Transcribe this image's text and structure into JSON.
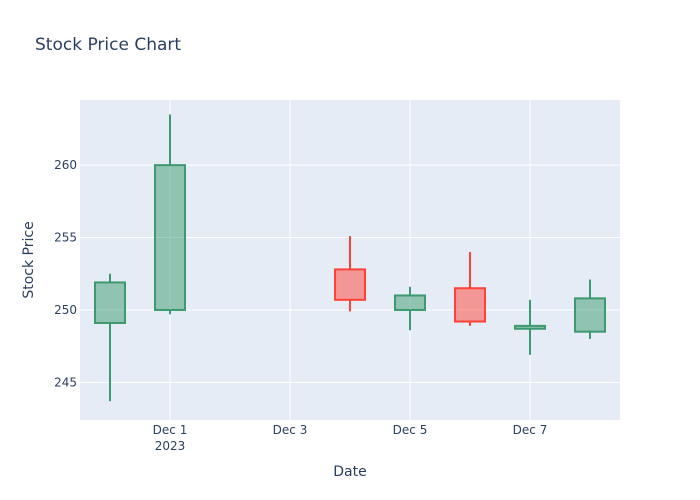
{
  "chart_data": {
    "type": "candlestick",
    "title": "Stock Price Chart",
    "xlabel": "Date",
    "ylabel": "Stock Price",
    "x_tick_labels": [
      {
        "date": "2023-12-01",
        "label": "Dec 1",
        "sublabel": "2023"
      },
      {
        "date": "2023-12-03",
        "label": "Dec 3",
        "sublabel": ""
      },
      {
        "date": "2023-12-05",
        "label": "Dec 5",
        "sublabel": ""
      },
      {
        "date": "2023-12-07",
        "label": "Dec 7",
        "sublabel": ""
      }
    ],
    "xlim": [
      "2023-11-29T12:00",
      "2023-12-08T12:00"
    ],
    "y_ticks": [
      245,
      250,
      255,
      260
    ],
    "ylim": [
      242.4,
      264.5
    ],
    "grid": true,
    "colors": {
      "increasing_line": "#3d9970",
      "increasing_fill": "rgba(61,153,112,0.5)",
      "decreasing_line": "#ff4136",
      "decreasing_fill": "rgba(255,65,54,0.5)",
      "plot_bg": "#e5ecf6",
      "grid": "#ffffff",
      "text": "#2a3f5f"
    },
    "candles": [
      {
        "date": "2023-11-30",
        "open": 249.1,
        "high": 252.5,
        "low": 243.7,
        "close": 251.9
      },
      {
        "date": "2023-12-01",
        "open": 250.0,
        "high": 263.5,
        "low": 249.7,
        "close": 260.0
      },
      {
        "date": "2023-12-04",
        "open": 252.8,
        "high": 255.1,
        "low": 249.9,
        "close": 250.7
      },
      {
        "date": "2023-12-05",
        "open": 250.0,
        "high": 251.6,
        "low": 248.6,
        "close": 251.0
      },
      {
        "date": "2023-12-06",
        "open": 251.5,
        "high": 254.0,
        "low": 248.9,
        "close": 249.2
      },
      {
        "date": "2023-12-07",
        "open": 248.7,
        "high": 250.7,
        "low": 246.9,
        "close": 248.9
      },
      {
        "date": "2023-12-08",
        "open": 248.5,
        "high": 252.1,
        "low": 248.0,
        "close": 250.8
      }
    ]
  }
}
